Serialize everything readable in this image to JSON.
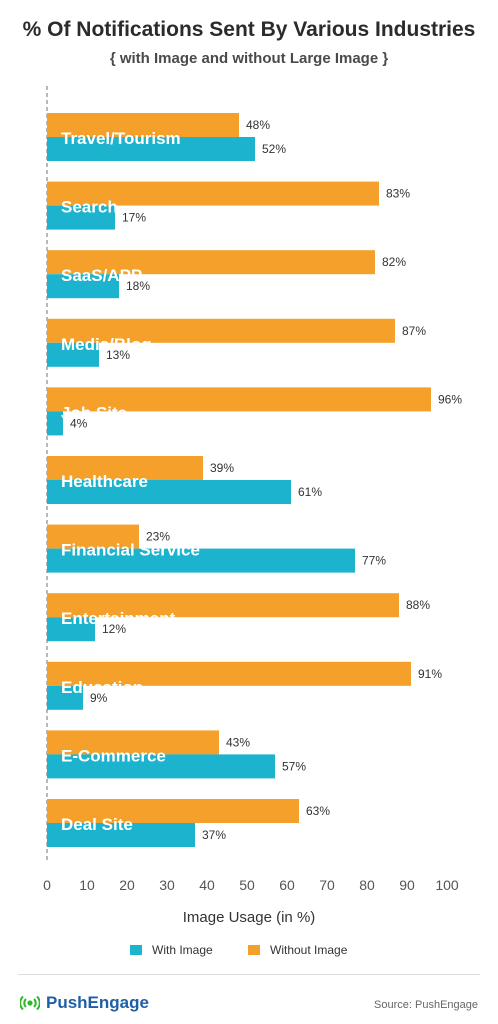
{
  "header": {
    "title": "% Of Notifications Sent By Various Industries",
    "subtitle": "{ with Image and without Large Image }"
  },
  "colors": {
    "with_image": "#1bb3cd",
    "without_image": "#f4a02a",
    "axis_text": "#555555"
  },
  "chart_data": {
    "type": "bar",
    "orientation": "horizontal",
    "categories": [
      "Travel/Tourism",
      "Search",
      "SaaS/APP",
      "Media/Blog",
      "Job Site",
      "Healthcare",
      "Financial Service",
      "Entertainment",
      "Education",
      "E-Commerce",
      "Deal Site"
    ],
    "series": [
      {
        "name": "Without Image",
        "values": [
          48,
          83,
          82,
          87,
          96,
          39,
          23,
          88,
          91,
          43,
          63
        ]
      },
      {
        "name": "With Image",
        "values": [
          52,
          17,
          18,
          13,
          4,
          61,
          77,
          12,
          9,
          57,
          37
        ]
      }
    ],
    "value_labels": {
      "without": [
        "48%",
        "83%",
        "82%",
        "87%",
        "96%",
        "39%",
        "23%",
        "88%",
        "91%",
        "43%",
        "63%"
      ],
      "with": [
        "52%",
        "17%",
        "18%",
        "13%",
        "4%",
        "61%",
        "77%",
        "12%",
        "9%",
        "57%",
        "37%"
      ]
    },
    "xlabel": "Image Usage (in %)",
    "xlim": [
      0,
      100
    ],
    "xticks": [
      "0",
      "10",
      "20",
      "30",
      "40",
      "50",
      "60",
      "70",
      "80",
      "90",
      "100"
    ],
    "grid": false
  },
  "legend": {
    "with_label": "With Image",
    "without_label": "Without Image"
  },
  "footer": {
    "brand": "PushEngage",
    "source": "Source: PushEngage"
  },
  "icons": {
    "brand_icon": "broadcast-signal-icon"
  }
}
